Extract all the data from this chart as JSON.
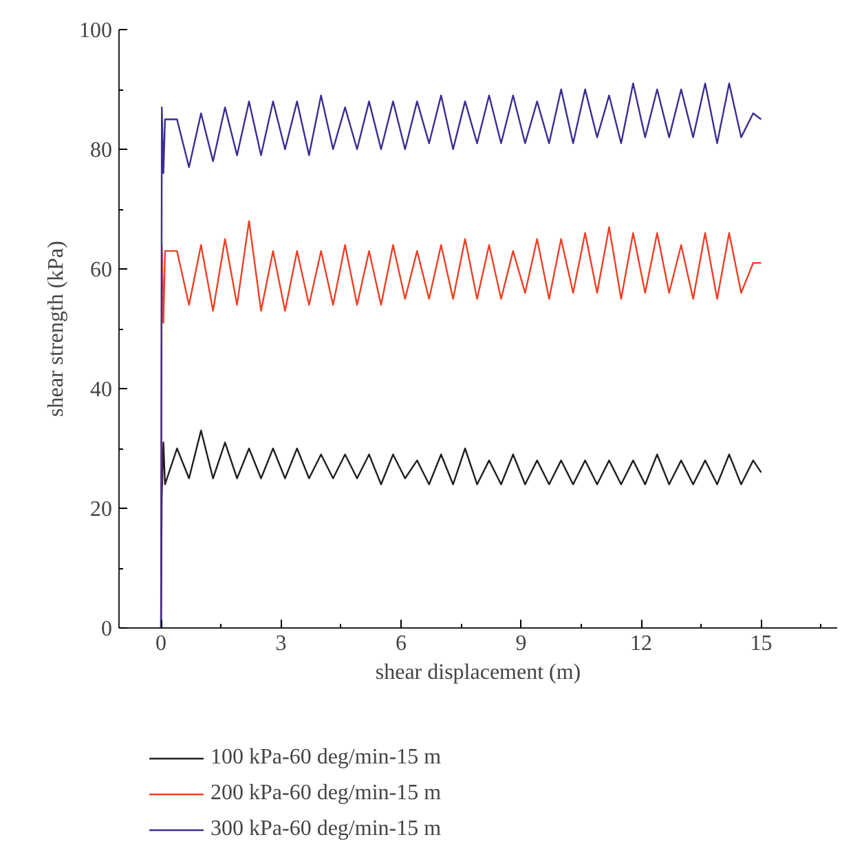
{
  "chart_data": {
    "type": "line",
    "xlabel": "shear displacement (m)",
    "ylabel": "shear strength (kPa)",
    "x": [
      0,
      0.02,
      0.06,
      0.1,
      0.4,
      0.7,
      1.0,
      1.3,
      1.6,
      1.9,
      2.2,
      2.5,
      2.8,
      3.1,
      3.4,
      3.7,
      4.0,
      4.3,
      4.6,
      4.9,
      5.2,
      5.5,
      5.8,
      6.1,
      6.4,
      6.7,
      7.0,
      7.3,
      7.6,
      7.9,
      8.2,
      8.5,
      8.8,
      9.1,
      9.4,
      9.7,
      10.0,
      10.3,
      10.6,
      10.9,
      11.2,
      11.5,
      11.8,
      12.1,
      12.4,
      12.7,
      13.0,
      13.3,
      13.6,
      13.9,
      14.2,
      14.5,
      14.8,
      15.0
    ],
    "series": [
      {
        "name": "100 kPa-60 deg/min-15 m",
        "color": "#231f20",
        "values": [
          0,
          22,
          31,
          24,
          30,
          25,
          33,
          25,
          31,
          25,
          30,
          25,
          30,
          25,
          30,
          25,
          29,
          25,
          29,
          25,
          29,
          24,
          29,
          25,
          28,
          24,
          29,
          24,
          30,
          24,
          28,
          24,
          29,
          24,
          28,
          24,
          28,
          24,
          28,
          24,
          28,
          24,
          28,
          24,
          29,
          24,
          28,
          24,
          28,
          24,
          29,
          24,
          28,
          26
        ]
      },
      {
        "name": "200 kPa-60 deg/min-15 m",
        "color": "#ee4023",
        "values": [
          0,
          64,
          51,
          63,
          63,
          54,
          64,
          53,
          65,
          54,
          68,
          53,
          63,
          53,
          63,
          54,
          63,
          54,
          64,
          54,
          63,
          54,
          64,
          55,
          63,
          55,
          64,
          55,
          65,
          55,
          64,
          55,
          63,
          56,
          65,
          55,
          65,
          56,
          66,
          56,
          67,
          55,
          66,
          56,
          66,
          56,
          64,
          55,
          66,
          55,
          66,
          56,
          61,
          61
        ]
      },
      {
        "name": "300 kPa-60 deg/min-15 m",
        "color": "#3a2e92",
        "values": [
          0,
          87,
          76,
          85,
          85,
          77,
          86,
          78,
          87,
          79,
          88,
          79,
          88,
          80,
          88,
          79,
          89,
          80,
          87,
          80,
          88,
          80,
          88,
          80,
          88,
          81,
          89,
          80,
          88,
          81,
          89,
          81,
          89,
          81,
          88,
          81,
          90,
          81,
          90,
          82,
          89,
          81,
          91,
          82,
          90,
          82,
          90,
          82,
          91,
          81,
          91,
          82,
          86,
          85
        ]
      }
    ],
    "xlim": [
      -1.05,
      16.9
    ],
    "xticks": [
      0,
      3,
      6,
      9,
      12,
      15
    ],
    "ylim": [
      0,
      100
    ],
    "yticks": [
      0,
      20,
      40,
      60,
      80,
      100
    ],
    "grid": false,
    "legend": "bottom",
    "marker": "none",
    "line_style": "solid"
  }
}
